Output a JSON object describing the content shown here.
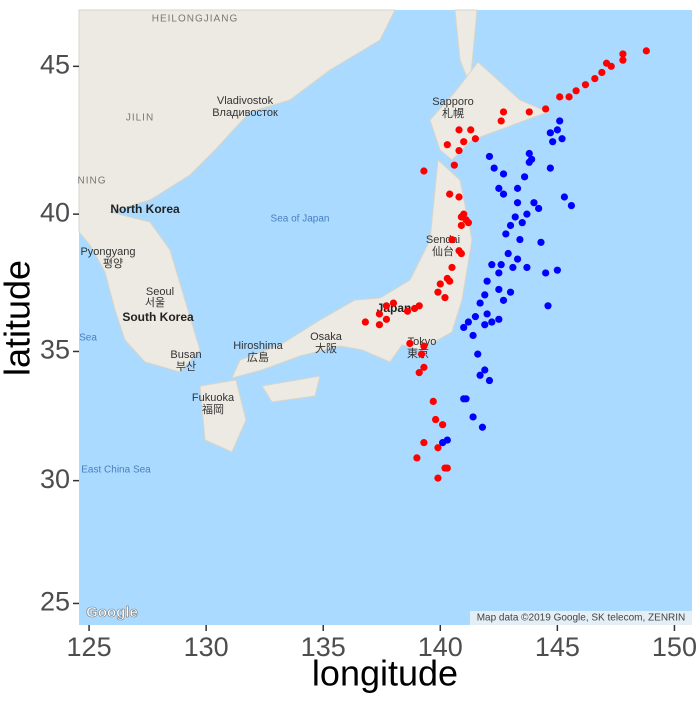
{
  "chart_data": {
    "type": "scatter",
    "x_label": "longitude",
    "y_label": "latitude",
    "xlim": [
      124.57,
      150.75
    ],
    "ylim": [
      24.1,
      46.8
    ],
    "xticks": [
      125,
      130,
      135,
      140,
      145,
      150
    ],
    "yticks": [
      25,
      30,
      35,
      40,
      45
    ],
    "y_projection": "mercator",
    "grid": false,
    "series": [
      {
        "color": "#ff0000",
        "x": [
          148.8,
          147.8,
          147.8,
          147.3,
          146.9,
          147.1,
          146.6,
          146.2,
          145.8,
          145.1,
          145.5,
          144.5,
          143.8,
          142.7,
          142.6,
          141.3,
          140.8,
          141.0,
          141.5,
          140.3,
          140.8,
          140.6,
          139.3,
          140.4,
          140.8,
          141.0,
          140.9,
          141.1,
          141.2,
          140.9,
          140.5,
          140.8,
          140.9,
          140.5,
          140.3,
          140.0,
          140.4,
          140.2,
          139.9,
          138.0,
          137.7,
          138.6,
          138.9,
          139.1,
          137.4,
          137.4,
          136.8,
          137.7,
          138.7,
          139.3,
          139.2,
          139.3,
          139.1,
          139.7,
          139.8,
          140.1,
          139.3,
          139.9,
          139.0,
          140.2,
          140.3,
          139.9
        ],
        "y": [
          45.5,
          45.4,
          45.2,
          45.0,
          44.8,
          45.1,
          44.6,
          44.4,
          44.2,
          44.0,
          44.0,
          43.6,
          43.5,
          43.5,
          43.2,
          42.9,
          42.9,
          42.5,
          42.6,
          42.4,
          42.2,
          41.7,
          41.5,
          40.7,
          40.6,
          40.0,
          39.9,
          39.8,
          39.7,
          39.6,
          39.1,
          38.7,
          38.6,
          38.1,
          37.7,
          37.5,
          37.6,
          37.0,
          37.2,
          36.8,
          36.7,
          36.5,
          36.6,
          36.7,
          36.4,
          36.0,
          36.1,
          36.2,
          35.3,
          35.2,
          34.9,
          34.4,
          34.2,
          33.1,
          32.4,
          32.2,
          31.5,
          31.3,
          30.9,
          30.5,
          30.5,
          30.1
        ]
      },
      {
        "color": "#0000ff",
        "x": [
          145.1,
          145.0,
          144.7,
          145.2,
          144.8,
          143.8,
          143.9,
          144.7,
          143.8,
          142.1,
          142.3,
          142.7,
          143.6,
          143.3,
          142.5,
          142.7,
          143.3,
          144.0,
          145.3,
          145.6,
          144.2,
          143.7,
          143.2,
          143.0,
          143.4,
          142.9,
          144.3,
          143.3,
          142.2,
          142.6,
          143.1,
          143.7,
          144.5,
          145.0,
          142.5,
          142.0,
          142.5,
          143.0,
          141.9,
          142.7,
          141.7,
          142.0,
          142.5,
          144.6,
          141.5,
          141.9,
          141.4,
          141.6,
          141.7,
          141.9,
          142.1,
          141.1,
          141.0,
          141.4,
          141.8,
          140.1,
          140.3,
          141.2,
          142.2,
          141.0,
          143.5,
          142.8
        ],
        "y": [
          43.2,
          42.9,
          42.8,
          42.6,
          42.5,
          42.1,
          41.9,
          41.6,
          41.8,
          42.0,
          41.6,
          41.4,
          41.3,
          40.9,
          40.9,
          40.7,
          40.4,
          40.4,
          40.6,
          40.3,
          40.2,
          40.0,
          39.9,
          39.6,
          39.1,
          38.6,
          39.0,
          38.4,
          38.2,
          38.2,
          38.1,
          38.1,
          37.9,
          38.0,
          37.9,
          37.6,
          37.3,
          37.2,
          37.1,
          36.9,
          36.8,
          36.4,
          36.2,
          36.7,
          36.3,
          36.0,
          35.6,
          34.9,
          34.1,
          34.3,
          33.9,
          33.2,
          33.2,
          32.5,
          32.1,
          31.5,
          31.6,
          36.1,
          36.1,
          35.9,
          39.7,
          39.3
        ]
      }
    ]
  },
  "map_labels": [
    "HEILONGJIANG",
    "Vladivostok",
    "Владивосток",
    "JILIN",
    "NING",
    "North Korea",
    "Pyongyang",
    "평양",
    "Seoul",
    "서울",
    "South Korea",
    "Busan",
    "부산",
    "Hiroshima",
    "広島",
    "Osaka",
    "大阪",
    "Fukuoka",
    "福岡",
    "Japan",
    "Tokyo",
    "東京",
    "Sendai",
    "仙台",
    "Sapporo",
    "札幌",
    "Sea of Japan",
    "East China Sea",
    "Sea",
    "Google",
    "Map data ©2019 Google, SK telecom, ZENRIN"
  ]
}
